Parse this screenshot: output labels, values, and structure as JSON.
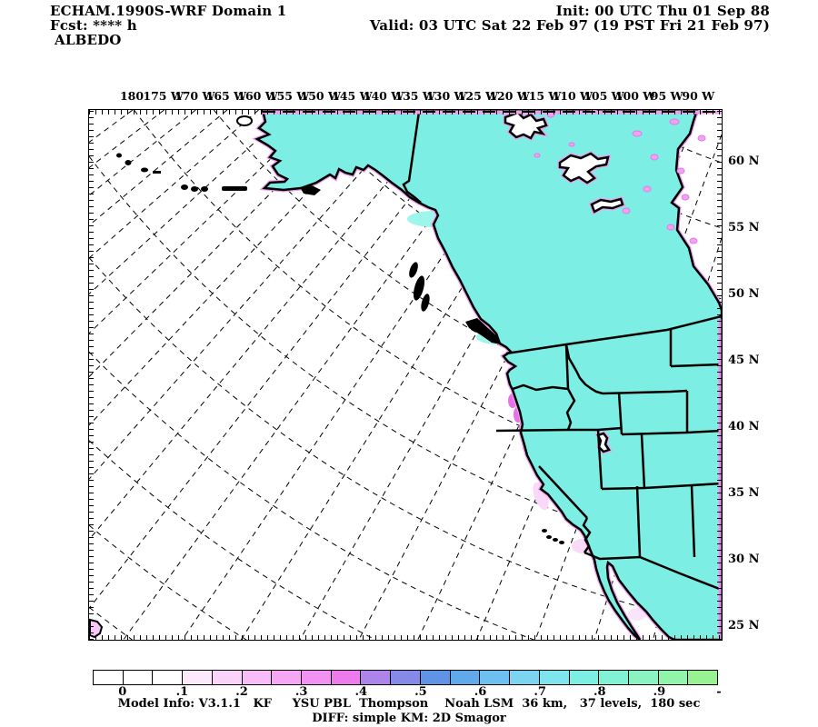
{
  "header": {
    "line1": "ECHAM.1990S-WRF Domain 1",
    "line2": "Fcst: **** h",
    "line3": "ALBEDO",
    "init": "Init: 00 UTC Thu 01 Sep 88",
    "valid": "Valid: 03 UTC Sat 22 Feb 97 (19 PST Fri 21 Feb 97)"
  },
  "map": {
    "top_axis_labels": [
      "180",
      "175 W",
      "170 W",
      "165 W",
      "160 W",
      "155 W",
      "150 W",
      "145 W",
      "140 W",
      "135 W",
      "130 W",
      "125 W",
      "120 W",
      "115 W",
      "110 W",
      "105 W",
      "100 W",
      "95 W",
      "90 W"
    ],
    "right_axis_labels": [
      "60 N",
      "55 N",
      "50 N",
      "45 N",
      "40 N",
      "35 N",
      "30 N",
      "25 N"
    ],
    "land_high_albedo_color": "#7deee3",
    "land_low_albedo_color": "#f3a9f3",
    "ocean_color": "#ffffff"
  },
  "colorbar": {
    "cell_colors": [
      "#ffffff",
      "#ffffff",
      "#ffffff",
      "#fce9fc",
      "#fad3fa",
      "#f8bdf8",
      "#f5a7f5",
      "#f191f1",
      "#ed7bed",
      "#ad84ea",
      "#8589e7",
      "#5f93e5",
      "#60a9eb",
      "#6ec0f0",
      "#7bd5f1",
      "#7ee5ef",
      "#7deee3",
      "#81f2d4",
      "#89f4c2",
      "#90f4ab",
      "#97f392"
    ],
    "labels": [
      {
        "text": "0",
        "boundary": 1
      },
      {
        "text": ".1",
        "boundary": 3
      },
      {
        "text": ".2",
        "boundary": 5
      },
      {
        "text": ".3",
        "boundary": 7
      },
      {
        "text": ".4",
        "boundary": 9
      },
      {
        "text": ".5",
        "boundary": 11
      },
      {
        "text": ".6",
        "boundary": 13
      },
      {
        "text": ".7",
        "boundary": 15
      },
      {
        "text": ".8",
        "boundary": 17
      },
      {
        "text": ".9",
        "boundary": 19
      },
      {
        "text": "-",
        "boundary": 21
      }
    ]
  },
  "footer": {
    "model_info": "Model Info: V3.1.1   KF     YSU PBL  Thompson    Noah LSM  36 km,   37 levels,  180 sec",
    "diff": "DIFF: simple KM: 2D Smagor"
  }
}
